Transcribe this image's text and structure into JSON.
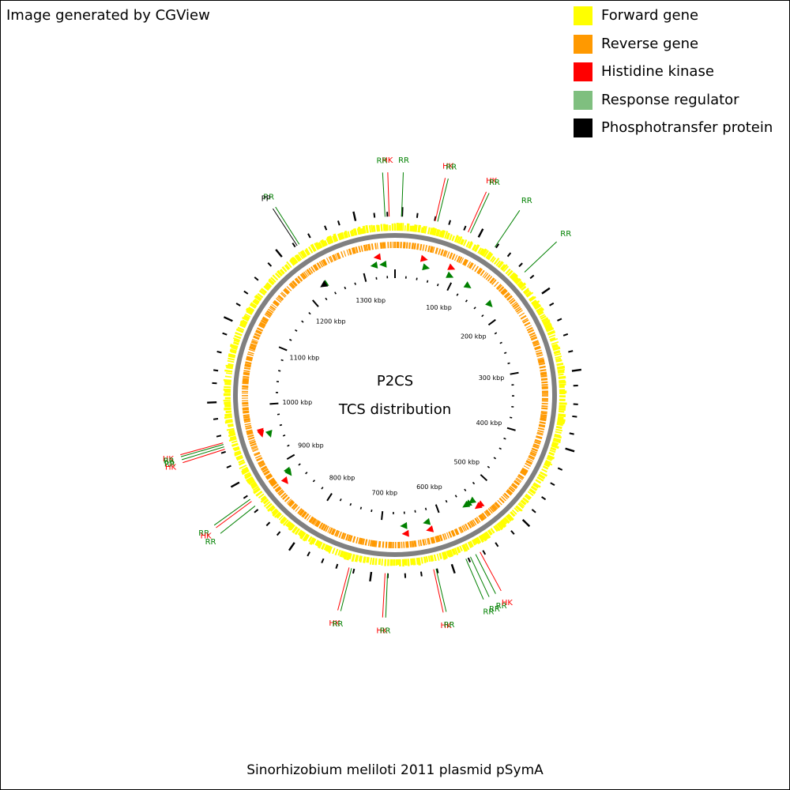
{
  "credit": "Image generated by CGView",
  "caption": "Sinorhizobium meliloti 2011 plasmid pSymA",
  "center_title": "P2CS",
  "center_subtitle": "TCS distribution",
  "legend": [
    {
      "label": "Forward gene",
      "color": "#ffff00"
    },
    {
      "label": "Reverse gene",
      "color": "#ff9900"
    },
    {
      "label": "Histidine kinase",
      "color": "#ff0000"
    },
    {
      "label": "Response regulator",
      "color": "#7fbf7f"
    },
    {
      "label": "Phosphotransfer protein",
      "color": "#000000"
    }
  ],
  "colors": {
    "forward": "#ffff00",
    "reverse": "#ff9900",
    "hk": "#ff0000",
    "rr": "#008000",
    "pp": "#000000",
    "backbone": "#808080"
  },
  "genome": {
    "length_kbp": 1354,
    "tick_labels": [
      "100 kbp",
      "200 kbp",
      "300 kbp",
      "400 kbp",
      "500 kbp",
      "600 kbp",
      "700 kbp",
      "800 kbp",
      "900 kbp",
      "1000 kbp",
      "1100 kbp",
      "1200 kbp",
      "1300 kbp"
    ]
  },
  "features": [
    {
      "type": "HK",
      "pos_kbp": 46,
      "strand": "+"
    },
    {
      "type": "RR",
      "pos_kbp": 52,
      "strand": "+"
    },
    {
      "type": "HK",
      "pos_kbp": 91,
      "strand": "+"
    },
    {
      "type": "RR",
      "pos_kbp": 94,
      "strand": "+"
    },
    {
      "type": "RR",
      "pos_kbp": 128,
      "strand": "+"
    },
    {
      "type": "RR",
      "pos_kbp": 175,
      "strand": "+"
    },
    {
      "type": "RR",
      "pos_kbp": 1334,
      "strand": "-"
    },
    {
      "type": "HK",
      "pos_kbp": 1326,
      "strand": "-"
    },
    {
      "type": "RR",
      "pos_kbp": 1319,
      "strand": "-"
    },
    {
      "type": "RR",
      "pos_kbp": 1231,
      "strand": "-"
    },
    {
      "type": "PP",
      "pos_kbp": 1229,
      "strand": "-"
    },
    {
      "type": "HK",
      "pos_kbp": 957,
      "strand": "-"
    },
    {
      "type": "HK",
      "pos_kbp": 954,
      "strand": "-"
    },
    {
      "type": "RR",
      "pos_kbp": 950,
      "strand": "-"
    },
    {
      "type": "RR",
      "pos_kbp": 881,
      "strand": "-"
    },
    {
      "type": "RR",
      "pos_kbp": 878,
      "strand": "-"
    },
    {
      "type": "HK",
      "pos_kbp": 871,
      "strand": "-"
    },
    {
      "type": "RR",
      "pos_kbp": 663,
      "strand": "+"
    },
    {
      "type": "HK",
      "pos_kbp": 661,
      "strand": "+"
    },
    {
      "type": "RR",
      "pos_kbp": 625,
      "strand": "+"
    },
    {
      "type": "HK",
      "pos_kbp": 623,
      "strand": "+"
    },
    {
      "type": "RR",
      "pos_kbp": 555,
      "strand": "+"
    },
    {
      "type": "RR",
      "pos_kbp": 551,
      "strand": "+"
    },
    {
      "type": "RR",
      "pos_kbp": 543,
      "strand": "+"
    },
    {
      "type": "HK",
      "pos_kbp": 540,
      "strand": "+"
    },
    {
      "type": "HK",
      "pos_kbp": 536,
      "strand": "+"
    }
  ],
  "callouts": [
    {
      "label": "HK",
      "type": "HK",
      "pos_kbp": 1347
    },
    {
      "label": "RR",
      "type": "RR",
      "pos_kbp": 1342
    },
    {
      "label": "RR",
      "type": "RR",
      "pos_kbp": 8
    },
    {
      "label": "HK",
      "type": "HK",
      "pos_kbp": 49
    },
    {
      "label": "RR",
      "type": "RR",
      "pos_kbp": 52
    },
    {
      "label": "HK",
      "type": "HK",
      "pos_kbp": 91
    },
    {
      "label": "RR",
      "type": "RR",
      "pos_kbp": 94
    },
    {
      "label": "RR",
      "type": "RR",
      "pos_kbp": 128
    },
    {
      "label": "RR",
      "type": "RR",
      "pos_kbp": 175
    },
    {
      "label": "RR",
      "type": "RR",
      "pos_kbp": 1232
    },
    {
      "label": "PP",
      "type": "PP",
      "pos_kbp": 1229
    },
    {
      "label": "HK",
      "type": "HK",
      "pos_kbp": 957
    },
    {
      "label": "RR",
      "type": "RR",
      "pos_kbp": 955
    },
    {
      "label": "RR",
      "type": "RR",
      "pos_kbp": 952
    },
    {
      "label": "HK",
      "type": "HK",
      "pos_kbp": 949
    },
    {
      "label": "RR",
      "type": "RR",
      "pos_kbp": 881
    },
    {
      "label": "HK",
      "type": "HK",
      "pos_kbp": 878
    },
    {
      "label": "RR",
      "type": "RR",
      "pos_kbp": 871
    },
    {
      "label": "HK",
      "type": "HK",
      "pos_kbp": 733
    },
    {
      "label": "RR",
      "type": "RR",
      "pos_kbp": 730
    },
    {
      "label": "HK",
      "type": "HK",
      "pos_kbp": 689
    },
    {
      "label": "RR",
      "type": "RR",
      "pos_kbp": 686
    },
    {
      "label": "HK",
      "type": "HK",
      "pos_kbp": 630
    },
    {
      "label": "RR",
      "type": "RR",
      "pos_kbp": 627
    },
    {
      "label": "RR",
      "type": "RR",
      "pos_kbp": 589
    },
    {
      "label": "RR",
      "type": "RR",
      "pos_kbp": 583
    },
    {
      "label": "RR",
      "type": "RR",
      "pos_kbp": 576
    },
    {
      "label": "HK",
      "type": "HK",
      "pos_kbp": 570
    }
  ]
}
